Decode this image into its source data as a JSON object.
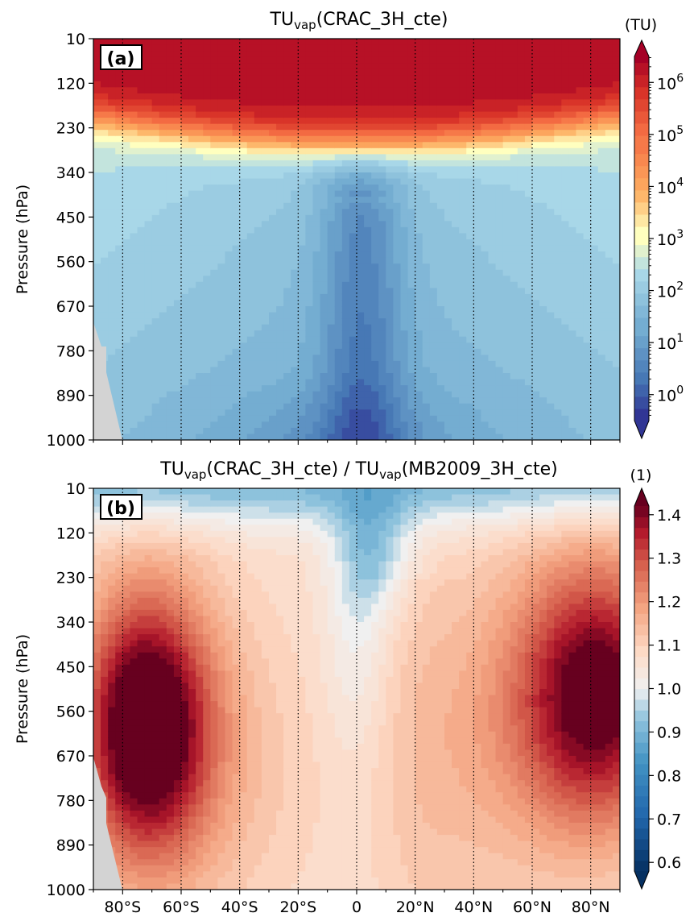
{
  "chart_data": [
    {
      "type": "heatmap",
      "panel_label": "(a)",
      "title": {
        "main": "TU",
        "sub": "vap",
        "rest": "(CRAC_3H_cte)"
      },
      "ylabel": "Pressure (hPa)",
      "xlabel": "",
      "y_ticks": [
        "10",
        "120",
        "230",
        "340",
        "450",
        "560",
        "670",
        "780",
        "890",
        "1000"
      ],
      "y_range": [
        10,
        1000
      ],
      "x_range": [
        -90,
        90
      ],
      "x_gridlines_deg": [
        -80,
        -60,
        -40,
        -20,
        0,
        20,
        40,
        60,
        80
      ],
      "colorbar": {
        "unit": "(TU)",
        "scale": "log",
        "range_log10": [
          -0.5,
          6.5
        ],
        "tick_base": "10",
        "tick_exponents": [
          "0",
          "1",
          "2",
          "3",
          "4",
          "5",
          "6"
        ],
        "colormap": "RdYlBu_r",
        "extend": "both"
      },
      "grid": "vertical dotted",
      "approx_field": "log10(TU) ≈ 0.3 near the tropical surface, 1–2.5 through mid troposphere, rising to ≈6 above ~200 hPa"
    },
    {
      "type": "heatmap",
      "panel_label": "(b)",
      "title": {
        "main": "TU",
        "sub": "vap",
        "rest": "(CRAC_3H_cte) / ",
        "main2": "TU",
        "sub2": "vap",
        "rest2": "(MB2009_3H_cte)"
      },
      "ylabel": "Pressure (hPa)",
      "xlabel": "",
      "x_ticks": [
        "80°S",
        "60°S",
        "40°S",
        "20°S",
        "0",
        "20°N",
        "40°N",
        "60°N",
        "80°N"
      ],
      "y_ticks": [
        "10",
        "120",
        "230",
        "340",
        "450",
        "560",
        "670",
        "780",
        "890",
        "1000"
      ],
      "y_range": [
        10,
        1000
      ],
      "x_range": [
        -90,
        90
      ],
      "colorbar": {
        "unit": "(1)",
        "scale": "linear",
        "range": [
          0.58,
          1.42
        ],
        "ticks": [
          "0.6",
          "0.7",
          "0.8",
          "0.9",
          "1.0",
          "1.1",
          "1.2",
          "1.3",
          "1.4"
        ],
        "colormap": "RdBu_r",
        "extend": "both"
      },
      "grid": "vertical dotted",
      "approx_field": "ratio ≈1.4 at high southern latitudes (450–900 hPa), ≈1.3–1.4 at high northern latitudes, ≈1.0–1.1 in the tropics, ≈0.9 near 10 hPa and above the equator"
    }
  ],
  "colors": {
    "land_mask": "#d3d3d3",
    "frame": "#000000"
  }
}
